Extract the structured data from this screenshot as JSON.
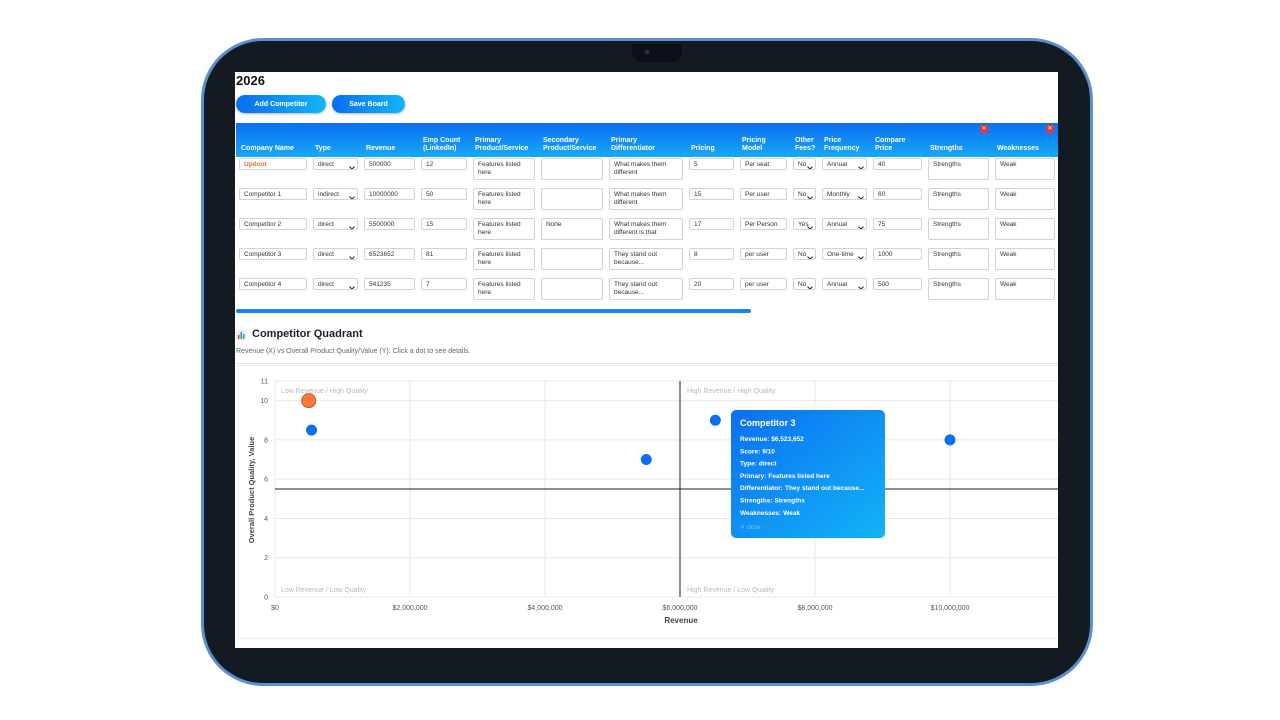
{
  "header": {
    "title": "2026",
    "buttons": [
      "Add Competitor",
      "Save Board"
    ]
  },
  "table": {
    "columns": [
      "Company Name",
      "Type",
      "Revenue",
      "Emp Count (LinkedIn)",
      "Primary Product/Service",
      "Secondary Product/Service",
      "Primary Differentiator",
      "Pricing",
      "Pricing Model",
      "Other Fees?",
      "Price Frequency",
      "Compare Price",
      "Strengths",
      "Weaknesses"
    ],
    "rows": [
      [
        "Updoot",
        "direct",
        "500000",
        "12",
        "Features listed here",
        null,
        "What makes them different",
        "5",
        "Per seat",
        "No",
        "Annual",
        "40",
        "Strengths",
        "Weak"
      ],
      [
        "Competitor 1",
        "indirect",
        "10000000",
        "50",
        "Features listed here",
        null,
        "What makes them different",
        "15",
        "Per user",
        "No",
        "Monthly",
        "60",
        "Strengths",
        "Weak"
      ],
      [
        "Competitor 2",
        "direct",
        "5500000",
        "15",
        "Features listed here",
        "None",
        "What makes them different is that",
        "17",
        "Per Person",
        "Yes",
        "Annual",
        "75",
        "Strengths",
        "Weak"
      ],
      [
        "Competitor 3",
        "direct",
        "6523652",
        "81",
        "Features listed here",
        null,
        "They stand out because...",
        "8",
        "per user",
        "No",
        "One-time",
        "1000",
        "Strengths",
        "Weak"
      ],
      [
        "Competitor 4",
        "direct",
        "541235",
        "7",
        "Features listed here",
        null,
        "They stand out because...",
        "20",
        "per user",
        "No",
        "Annual",
        "500",
        "Strengths",
        "Weak"
      ]
    ]
  },
  "quadrant": {
    "title": "Competitor Quadrant",
    "subtitle": "Revenue (X) vs Overall Product Quality/Value (Y). Click a dot to see details.",
    "x_label": "Revenue",
    "y_label": "Overall Product Quality, Value",
    "xlim": [
      0,
      11600000
    ],
    "xticks": [
      {
        "value": 0,
        "label": "$0"
      },
      {
        "value": 2000000,
        "label": "$2,000,000"
      },
      {
        "value": 4000000,
        "label": "$4,000,000"
      },
      {
        "value": 6000000,
        "label": "$6,000,000"
      },
      {
        "value": 8000000,
        "label": "$8,000,000"
      },
      {
        "value": 10000000,
        "label": "$10,000,000"
      }
    ],
    "ylim": [
      0,
      11
    ],
    "yticks": [
      0,
      2,
      4,
      6,
      8,
      10,
      11
    ],
    "x_divider": 6000000,
    "y_divider": 5.5,
    "quadrant_labels": [
      "Low Revenue / High Quality",
      "High Revenue / High Quality",
      "Low Revenue / Low Quality",
      "High Revenue / Low Quality"
    ],
    "points": {
      "x": [
        500000,
        10000000,
        5500000,
        6523652,
        541235
      ],
      "y": [
        10,
        8,
        7,
        9,
        8.5
      ],
      "colors": [
        "#f5793b",
        "#0b6ff2",
        "#0b6ff2",
        "#0b6ff2",
        "#0b6ff2"
      ]
    },
    "tooltip": {
      "title": "Competitor 3",
      "rows": [
        [
          "Revenue:",
          "$6,523,652"
        ],
        [
          "Score:",
          "9/10"
        ],
        [
          "Type:",
          "direct"
        ],
        [
          "Primary:",
          "Features listed here"
        ],
        [
          "Differentiator:",
          "They stand out because..."
        ],
        [
          "Strengths:",
          "Strengths"
        ],
        [
          "Weaknesses:",
          "Weak"
        ]
      ],
      "close": "✕ close"
    }
  }
}
